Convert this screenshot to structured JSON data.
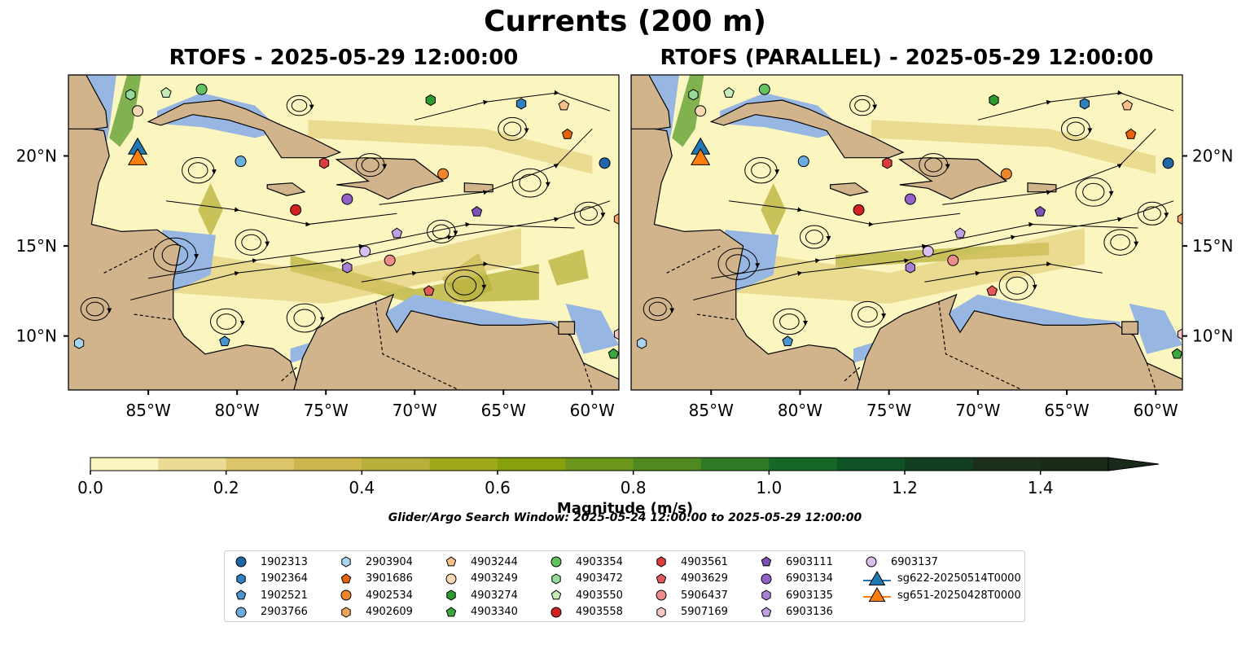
{
  "figure": {
    "title": "Currents (200 m)",
    "left_panel_title": "RTOFS - 2025-05-29 12:00:00",
    "right_panel_title": "RTOFS (PARALLEL) - 2025-05-29 12:00:00",
    "colorbar_label": "Magnitude (m/s)",
    "search_window": "Glider/Argo Search Window: 2025-05-24 12:00:00 to 2025-05-29 12:00:00"
  },
  "colors": {
    "land": "#d2b48c",
    "shallow_water": "#97b6e1",
    "coastline": "#000000",
    "colorbar": [
      "#fbf5c0",
      "#ecdb95",
      "#dcc46a",
      "#cdb74d",
      "#b8b03a",
      "#9ea91c",
      "#87a10e",
      "#6a961a",
      "#4f8a20",
      "#2f7a24",
      "#166628",
      "#0e5226",
      "#123f22",
      "#1b2f1c",
      "#1a2a18"
    ]
  },
  "map_extent": {
    "lon_min": -89.5,
    "lon_max": -58.5,
    "lat_min": 7,
    "lat_max": 24.5
  },
  "axes": {
    "lon_ticks": [
      -85,
      -80,
      -75,
      -70,
      -65,
      -60
    ],
    "lon_tick_labels": [
      "85°W",
      "80°W",
      "75°W",
      "70°W",
      "65°W",
      "60°W"
    ],
    "lat_ticks": [
      10,
      15,
      20
    ],
    "lat_tick_labels": [
      "10°N",
      "15°N",
      "20°N"
    ]
  },
  "colorbar": {
    "min": 0,
    "max": 1.5,
    "step": 0.1,
    "extend": "max",
    "ticks": [
      0.0,
      0.2,
      0.4,
      0.6,
      0.8,
      1.0,
      1.2,
      1.4
    ],
    "tick_labels": [
      "0.0",
      "0.2",
      "0.4",
      "0.6",
      "0.8",
      "1.0",
      "1.2",
      "1.4"
    ]
  },
  "platforms": [
    {
      "id": "1902313",
      "marker": "circle",
      "color": "#1f66a8",
      "lon": -59.3,
      "lat": 19.6
    },
    {
      "id": "1902364",
      "marker": "hexagon",
      "color": "#2f7fc1",
      "lon": -64.0,
      "lat": 22.9
    },
    {
      "id": "1902521",
      "marker": "pentagon",
      "color": "#4a94d0",
      "lon": -80.7,
      "lat": 9.7
    },
    {
      "id": "2903766",
      "marker": "circle",
      "color": "#6aaee0",
      "lon": -79.8,
      "lat": 19.7
    },
    {
      "id": "2903904",
      "marker": "hexagon",
      "color": "#a9d4f0",
      "lon": -88.9,
      "lat": 9.6
    },
    {
      "id": "3901686",
      "marker": "pentagon",
      "color": "#e8620a",
      "lon": -61.4,
      "lat": 21.2
    },
    {
      "id": "4902534",
      "marker": "circle",
      "color": "#f0862a",
      "lon": -68.4,
      "lat": 19.0
    },
    {
      "id": "4902609",
      "marker": "hexagon",
      "color": "#f4a35a",
      "lon": -58.5,
      "lat": 16.5
    },
    {
      "id": "4903244",
      "marker": "pentagon",
      "color": "#f7bf8a",
      "lon": -61.6,
      "lat": 22.8
    },
    {
      "id": "4903249",
      "marker": "circle",
      "color": "#fad8b6",
      "lon": -85.6,
      "lat": 22.5
    },
    {
      "id": "4903274",
      "marker": "hexagon",
      "color": "#2c9a2c",
      "lon": -69.1,
      "lat": 23.1
    },
    {
      "id": "4903340",
      "marker": "pentagon",
      "color": "#3aa83a",
      "lon": -58.8,
      "lat": 9.0
    },
    {
      "id": "4903354",
      "marker": "circle",
      "color": "#62c262",
      "lon": -82.0,
      "lat": 23.7
    },
    {
      "id": "4903472",
      "marker": "hexagon",
      "color": "#98d898",
      "lon": -86.0,
      "lat": 23.4
    },
    {
      "id": "4903550",
      "marker": "pentagon",
      "color": "#c6ecb6",
      "lon": -84.0,
      "lat": 23.5
    },
    {
      "id": "4903558",
      "marker": "circle",
      "color": "#d32020",
      "lon": -76.7,
      "lat": 17.0
    },
    {
      "id": "4903561",
      "marker": "hexagon",
      "color": "#dc3c3c",
      "lon": -75.1,
      "lat": 19.6
    },
    {
      "id": "4903629",
      "marker": "pentagon",
      "color": "#e45a5a",
      "lon": -69.2,
      "lat": 12.5
    },
    {
      "id": "5906437",
      "marker": "circle",
      "color": "#ee8c8c",
      "lon": -71.4,
      "lat": 14.2
    },
    {
      "id": "5907169",
      "marker": "hexagon",
      "color": "#f8c6c6",
      "lon": -58.5,
      "lat": 10.1
    },
    {
      "id": "6903111",
      "marker": "pentagon",
      "color": "#7d52b8",
      "lon": -66.5,
      "lat": 16.9
    },
    {
      "id": "6903134",
      "marker": "circle",
      "color": "#9160c8",
      "lon": -73.8,
      "lat": 17.6
    },
    {
      "id": "6903135",
      "marker": "hexagon",
      "color": "#a780d6",
      "lon": -73.8,
      "lat": 13.8
    },
    {
      "id": "6903136",
      "marker": "pentagon",
      "color": "#bea0e4",
      "lon": -71.0,
      "lat": 15.7
    },
    {
      "id": "6903137",
      "marker": "circle",
      "color": "#d8bff0",
      "lon": -72.8,
      "lat": 14.7
    },
    {
      "id": "sg622-20250514T0000",
      "marker": "triangle",
      "color": "#1f77b4",
      "lon": -85.6,
      "lat": 20.4
    },
    {
      "id": "sg651-20250428T0000",
      "marker": "triangle",
      "color": "#ff7f0e",
      "lon": -85.6,
      "lat": 19.8
    }
  ]
}
